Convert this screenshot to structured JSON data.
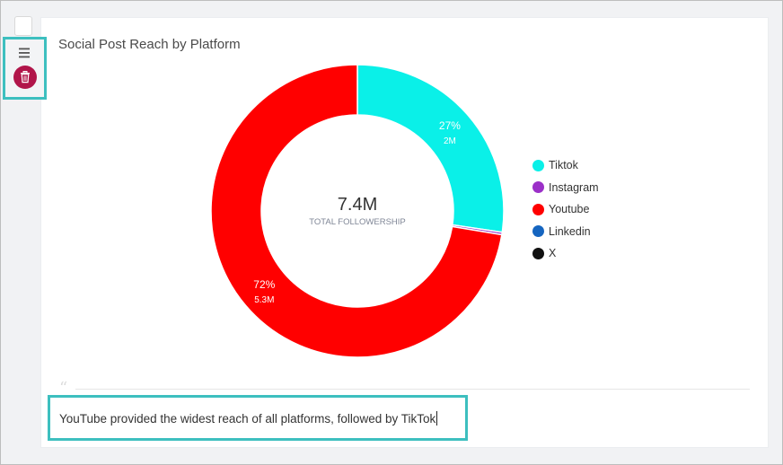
{
  "chart_data": {
    "type": "pie",
    "variant": "donut",
    "title": "Social Post Reach by Platform",
    "categories": [
      "Tiktok",
      "Instagram",
      "Youtube",
      "Linkedin",
      "X"
    ],
    "values": [
      2.0,
      0.02,
      5.3,
      0.0,
      0.0
    ],
    "unit": "M",
    "colors": [
      "#0af0e8",
      "#9b30c8",
      "#ff0000",
      "#1565c0",
      "#111111"
    ],
    "slice_labels": [
      {
        "category": "Tiktok",
        "percent": "27%",
        "value": "2M"
      },
      {
        "category": "Youtube",
        "percent": "72%",
        "value": "5.3M"
      }
    ],
    "center": {
      "value": "7.4M",
      "label": "TOTAL FOLLOWERSHIP"
    },
    "legend_position": "right"
  },
  "caption": "YouTube provided the widest reach of all platforms, followed by TikTok",
  "icons": {
    "menu": "hamburger-icon",
    "delete": "trash-icon"
  },
  "colors": {
    "accent": "#3dbfbf",
    "delete": "#b1154a"
  }
}
